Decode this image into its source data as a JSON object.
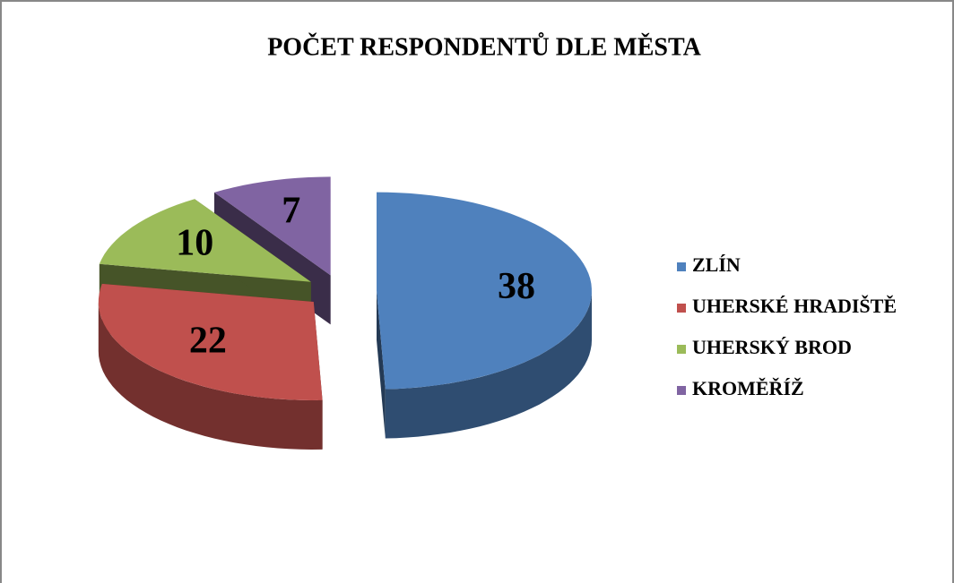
{
  "chart_data": {
    "type": "pie",
    "title": "POČET RESPONDENTŮ DLE MĚSTA",
    "categories": [
      "ZLÍN",
      "UHERSKÉ HRADIŠTĚ",
      "UHERSKÝ BROD",
      "KROMĚŘÍŽ"
    ],
    "values": [
      38,
      22,
      10,
      7
    ],
    "colors": [
      "#4f81bd",
      "#c0504d",
      "#9bbb59",
      "#8064a2"
    ],
    "legend": "right"
  }
}
